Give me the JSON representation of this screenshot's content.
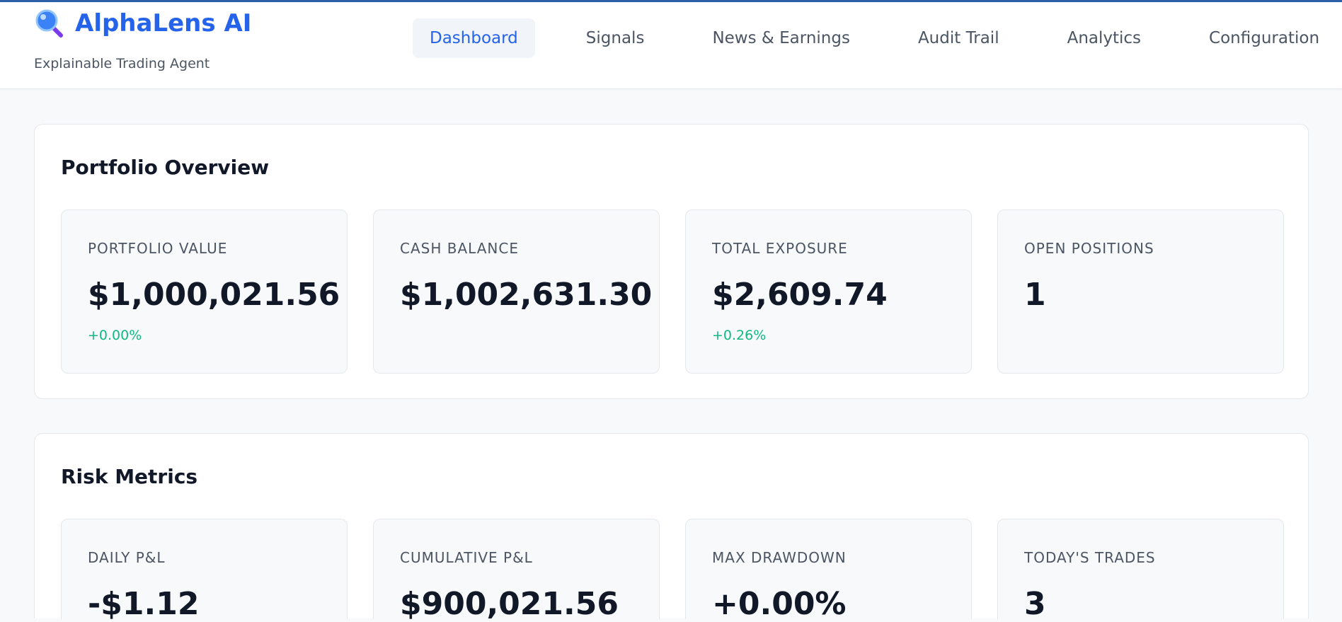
{
  "app": {
    "title": "AlphaLens AI",
    "subtitle": "Explainable Trading Agent",
    "icon": "magnifier-icon",
    "accent_color": "#2563eb"
  },
  "nav": {
    "items": [
      {
        "label": "Dashboard",
        "active": true
      },
      {
        "label": "Signals",
        "active": false
      },
      {
        "label": "News & Earnings",
        "active": false
      },
      {
        "label": "Audit Trail",
        "active": false
      },
      {
        "label": "Analytics",
        "active": false
      },
      {
        "label": "Configuration",
        "active": false
      }
    ]
  },
  "portfolio": {
    "title": "Portfolio Overview",
    "metrics": [
      {
        "label": "PORTFOLIO VALUE",
        "value": "$1,000,021.56",
        "change": "+0.00%"
      },
      {
        "label": "CASH BALANCE",
        "value": "$1,002,631.30",
        "change": ""
      },
      {
        "label": "TOTAL EXPOSURE",
        "value": "$2,609.74",
        "change": "+0.26%"
      },
      {
        "label": "OPEN POSITIONS",
        "value": "1",
        "change": ""
      }
    ]
  },
  "risk": {
    "title": "Risk Metrics",
    "metrics": [
      {
        "label": "DAILY P&L",
        "value": "-$1.12"
      },
      {
        "label": "CUMULATIVE P&L",
        "value": "$900,021.56"
      },
      {
        "label": "MAX DRAWDOWN",
        "value": "+0.00%"
      },
      {
        "label": "TODAY'S TRADES",
        "value": "3"
      }
    ]
  },
  "colors": {
    "positive": "#10b981",
    "text_muted": "#4b5563",
    "header_border": "#2b5fa8"
  }
}
